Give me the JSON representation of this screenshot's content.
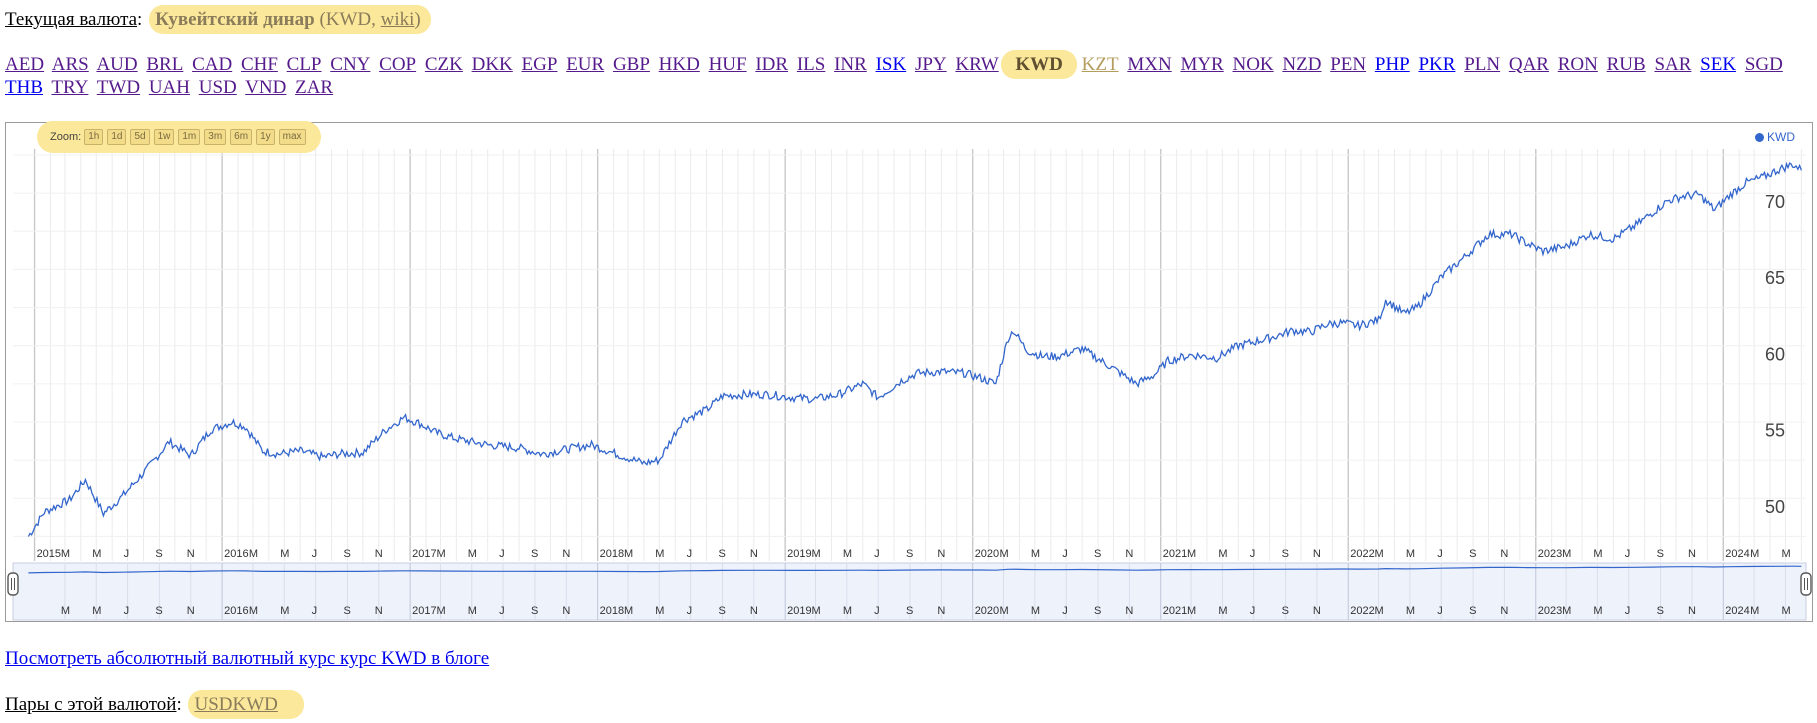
{
  "current": {
    "label": "Текущая валюта",
    "colon": ":",
    "name": "Кувейтский динар",
    "code_open": "(KWD, ",
    "wiki": "wiki",
    "close": ")"
  },
  "currencies_before": [
    "AED",
    "ARS",
    "AUD",
    "BRL",
    "CAD",
    "CHF",
    "CLP",
    "CNY",
    "COP",
    "CZK",
    "DKK",
    "EGP",
    "EUR",
    "GBP",
    "HKD",
    "HUF",
    "IDR",
    "ILS",
    "INR",
    "ISK",
    "JPY",
    "KRW"
  ],
  "currency_active": "KWD",
  "currencies_after": [
    "KZT",
    "MXN",
    "MYR",
    "NOK",
    "NZD",
    "PEN",
    "PHP",
    "PKR",
    "PLN",
    "QAR",
    "RON",
    "RUB",
    "SAR",
    "SEK",
    "SGD",
    "THB",
    "TRY",
    "TWD",
    "UAH",
    "USD",
    "VND",
    "ZAR"
  ],
  "unvisited_currencies": [
    "ISK",
    "PHP",
    "PKR",
    "SEK",
    "THB"
  ],
  "zoom": {
    "label": "Zoom:",
    "buttons": [
      "1h",
      "1d",
      "5d",
      "1w",
      "1m",
      "3m",
      "6m",
      "1y",
      "max"
    ]
  },
  "legend": "KWD",
  "colors": {
    "line": "#3366cc",
    "highlight": "#fbe89a",
    "link": "#551a8b",
    "link_unvisited": "#0000ee"
  },
  "chart_data": {
    "type": "line",
    "title": "",
    "series": [
      {
        "name": "KWD",
        "x": [
          "2014-12-20",
          "2015-01-20",
          "2015-03-10",
          "2015-04-10",
          "2015-05-15",
          "2015-06-20",
          "2015-08-10",
          "2015-09-20",
          "2015-11-01",
          "2015-12-10",
          "2016-01-20",
          "2016-02-15",
          "2016-03-20",
          "2016-04-20",
          "2016-06-01",
          "2016-07-15",
          "2016-08-15",
          "2016-10-01",
          "2016-11-15",
          "2016-12-20",
          "2017-01-20",
          "2017-02-20",
          "2017-04-01",
          "2017-06-01",
          "2017-08-01",
          "2017-09-15",
          "2017-11-15",
          "2017-12-20",
          "2018-02-15",
          "2018-04-01",
          "2018-05-01",
          "2018-06-15",
          "2018-08-01",
          "2018-09-01",
          "2018-10-15",
          "2018-12-01",
          "2019-01-15",
          "2019-03-01",
          "2019-04-15",
          "2019-06-01",
          "2019-07-01",
          "2019-08-15",
          "2019-09-15",
          "2019-11-01",
          "2019-12-15",
          "2020-01-15",
          "2020-02-15",
          "2020-03-10",
          "2020-03-20",
          "2020-04-15",
          "2020-05-15",
          "2020-06-15",
          "2020-08-01",
          "2020-10-01",
          "2020-11-15",
          "2020-12-20",
          "2021-01-15",
          "2021-03-01",
          "2021-04-20",
          "2021-06-01",
          "2021-08-01",
          "2021-09-15",
          "2021-10-20",
          "2021-11-20",
          "2021-12-20",
          "2022-01-20",
          "2022-03-01",
          "2022-03-15",
          "2022-04-20",
          "2022-05-15",
          "2022-07-01",
          "2022-08-15",
          "2022-10-01",
          "2022-11-15",
          "2022-12-15",
          "2023-01-15",
          "2023-03-01",
          "2023-04-15",
          "2023-06-01",
          "2023-07-15",
          "2023-08-15",
          "2023-09-15",
          "2023-10-15",
          "2023-11-15",
          "2023-12-15",
          "2024-01-15",
          "2024-02-15",
          "2024-03-15",
          "2024-04-15",
          "2024-05-15",
          "2024-06-01"
        ],
        "y": [
          48.0,
          49.6,
          50.4,
          51.7,
          49.5,
          50.6,
          52.5,
          54.2,
          53.3,
          55.0,
          55.5,
          55.2,
          53.6,
          53.4,
          53.6,
          53.2,
          53.4,
          53.5,
          55.0,
          55.8,
          55.4,
          54.8,
          54.4,
          54.0,
          53.8,
          53.4,
          53.8,
          54.0,
          53.3,
          52.8,
          53.0,
          55.6,
          56.3,
          57.2,
          57.3,
          57.3,
          57.1,
          57.0,
          57.3,
          58.0,
          57.1,
          58.2,
          58.7,
          58.8,
          58.7,
          58.4,
          58.0,
          61.0,
          61.5,
          60.2,
          59.8,
          59.8,
          60.3,
          59.0,
          58.0,
          58.6,
          59.5,
          59.9,
          59.7,
          60.5,
          61.0,
          61.5,
          61.4,
          61.9,
          62.0,
          61.8,
          62.2,
          63.5,
          62.6,
          63.0,
          65.0,
          66.3,
          67.8,
          67.8,
          67.2,
          66.7,
          67.0,
          67.8,
          67.5,
          68.4,
          69.2,
          70.0,
          70.3,
          70.4,
          69.4,
          70.4,
          71.2,
          71.5,
          72.0,
          72.4,
          72.0
        ]
      }
    ],
    "yticks": [
      50,
      55,
      60,
      65,
      70
    ],
    "ylim": [
      47.7,
      73.0
    ],
    "xlim": [
      "2014-11-20",
      "2024-06-10"
    ],
    "xaxis": {
      "years": [
        "2015",
        "2016",
        "2017",
        "2018",
        "2019",
        "2020",
        "2021",
        "2022",
        "2023",
        "2024"
      ],
      "month_labels": [
        "M",
        "M",
        "J",
        "S",
        "N"
      ]
    },
    "navigator": {
      "years": [
        "2016",
        "2017",
        "2018",
        "2019",
        "2020",
        "2021",
        "2022",
        "2023",
        "2024"
      ],
      "month_labels": [
        "M",
        "M",
        "J",
        "S",
        "N"
      ]
    },
    "grid": true,
    "legend_position": "top-right"
  },
  "footer": {
    "blog_link": "Посмотреть абсолютный валютный курс курс KWD в блоге",
    "pairs_label": "Пары с этой валютой",
    "pairs_colon": ":",
    "pair": "USDKWD"
  }
}
